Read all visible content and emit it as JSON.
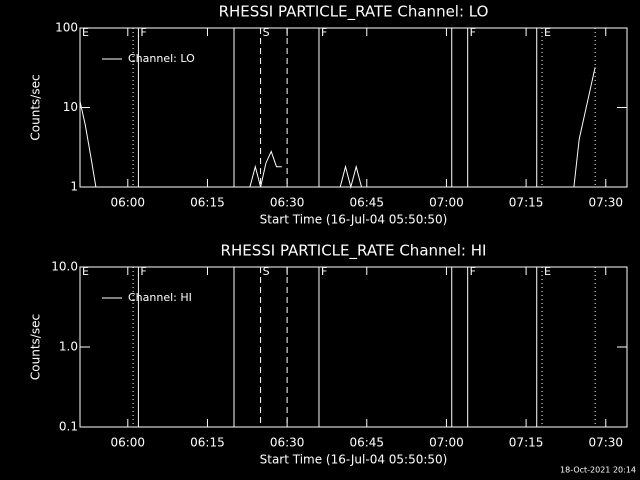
{
  "chart_data": [
    {
      "type": "line",
      "title": "RHESSI PARTICLE_RATE Channel: LO",
      "xlabel": "Start Time (16-Jul-04 05:50:50)",
      "ylabel": "Counts/sec",
      "log_y": true,
      "xlim": [
        "05:51",
        "07:34"
      ],
      "xticks": [
        "06:00",
        "06:15",
        "06:30",
        "06:45",
        "07:00",
        "07:15",
        "07:30"
      ],
      "ylim": [
        1,
        100
      ],
      "yticks": [
        1,
        10,
        100
      ],
      "legend": "upper left",
      "series": [
        {
          "name": "Channel: LO",
          "color": "#ffffff",
          "x": [
            "05:51",
            "05:52",
            "05:53",
            "05:54",
            null,
            "06:23",
            "06:24",
            "06:25",
            "06:26",
            "06:27",
            "06:28",
            "06:29",
            null,
            "06:40",
            "06:41",
            "06:42",
            "06:43",
            "06:44",
            null,
            "07:24",
            "07:25",
            "07:26",
            "07:27",
            "07:28"
          ],
          "values": [
            12,
            6,
            2.5,
            1,
            null,
            1,
            1.8,
            1,
            2,
            2.8,
            1.8,
            1.8,
            null,
            1,
            1.8,
            1,
            1.8,
            1,
            null,
            1,
            4,
            8,
            16,
            32
          ]
        }
      ],
      "markers": [
        {
          "x": "06:01",
          "style": "dotted"
        },
        {
          "x": "06:02",
          "style": "solid"
        },
        {
          "x": "06:20",
          "style": "solid"
        },
        {
          "x": "06:25",
          "style": "dashed"
        },
        {
          "x": "06:30",
          "style": "dashed"
        },
        {
          "x": "06:36",
          "style": "solid"
        },
        {
          "x": "07:01",
          "style": "solid"
        },
        {
          "x": "07:04",
          "style": "solid"
        },
        {
          "x": "07:17",
          "style": "solid"
        },
        {
          "x": "07:18",
          "style": "dotted"
        },
        {
          "x": "07:28",
          "style": "dotted"
        }
      ],
      "marker_labels": [
        {
          "x": "05:51",
          "label": "E"
        },
        {
          "x": "06:02",
          "label": "F"
        },
        {
          "x": "06:25",
          "label": "S"
        },
        {
          "x": "06:36",
          "label": "F"
        },
        {
          "x": "07:04",
          "label": "F"
        },
        {
          "x": "07:18",
          "label": "E"
        }
      ]
    },
    {
      "type": "line",
      "title": "RHESSI PARTICLE_RATE Channel: HI",
      "xlabel": "Start Time (16-Jul-04 05:50:50)",
      "ylabel": "Counts/sec",
      "log_y": true,
      "xlim": [
        "05:51",
        "07:34"
      ],
      "xticks": [
        "06:00",
        "06:15",
        "06:30",
        "06:45",
        "07:00",
        "07:15",
        "07:30"
      ],
      "ylim": [
        0.1,
        10
      ],
      "yticks": [
        0.1,
        {
          "value": 1,
          "label": "1.0"
        },
        {
          "value": 10,
          "label": "10.0"
        }
      ],
      "legend": "upper left",
      "series": [
        {
          "name": "Channel: HI",
          "color": "#ffffff",
          "x": [],
          "values": []
        }
      ],
      "markers": [
        {
          "x": "06:01",
          "style": "dotted"
        },
        {
          "x": "06:02",
          "style": "solid"
        },
        {
          "x": "06:20",
          "style": "solid"
        },
        {
          "x": "06:25",
          "style": "dashed"
        },
        {
          "x": "06:30",
          "style": "dashed"
        },
        {
          "x": "06:36",
          "style": "solid"
        },
        {
          "x": "07:01",
          "style": "solid"
        },
        {
          "x": "07:04",
          "style": "solid"
        },
        {
          "x": "07:17",
          "style": "solid"
        },
        {
          "x": "07:18",
          "style": "dotted"
        },
        {
          "x": "07:28",
          "style": "dotted"
        }
      ],
      "marker_labels": [
        {
          "x": "05:51",
          "label": "E"
        },
        {
          "x": "06:02",
          "label": "F"
        },
        {
          "x": "06:25",
          "label": "S"
        },
        {
          "x": "06:36",
          "label": "F"
        },
        {
          "x": "07:04",
          "label": "F"
        },
        {
          "x": "07:18",
          "label": "E"
        }
      ]
    }
  ],
  "footer": "18-Oct-2021 20:14"
}
